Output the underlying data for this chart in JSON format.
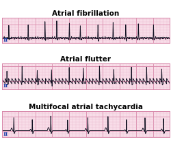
{
  "title1": "Atrial fibrillation",
  "title2": "Atrial flutter",
  "title3": "Multifocal atrial tachycardia",
  "bg_color": "#f8dde8",
  "grid_minor_color": "#e8afc8",
  "grid_major_color": "#d888aa",
  "ecg_color": "#111122",
  "lead_label": "II",
  "title_fontsize": 7.5,
  "label_fontsize": 5.5,
  "fig_bg": "#ffffff"
}
